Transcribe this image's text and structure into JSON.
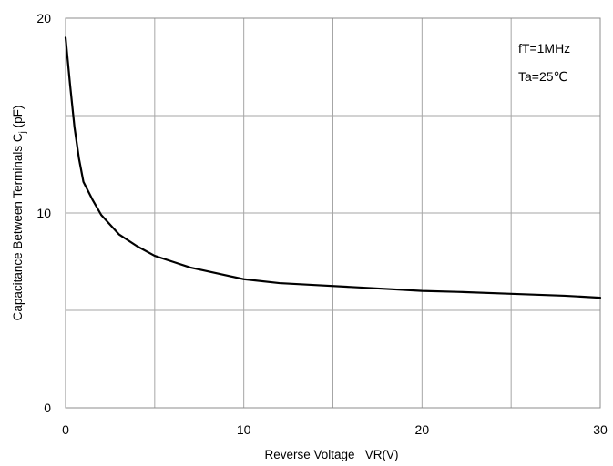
{
  "chart_data": {
    "type": "line",
    "xlabel": "Reverse Voltage   VR(V)",
    "ylabel": {
      "main": "Capacitance Between Terminals C",
      "sub": "j",
      "unit": " (pF)"
    },
    "xlim": [
      0,
      30
    ],
    "ylim": [
      0,
      20
    ],
    "xticks": [
      0,
      10,
      20,
      30
    ],
    "yticks": [
      0,
      10,
      20
    ],
    "x_grid": [
      0,
      5,
      10,
      15,
      20,
      25,
      30
    ],
    "y_grid": [
      0,
      5,
      10,
      15,
      20
    ],
    "grid": true,
    "annotations": [
      "fT=1MHz",
      "Ta=25℃"
    ],
    "series": [
      {
        "x": [
          0,
          0.25,
          0.5,
          0.75,
          1,
          1.5,
          2,
          3,
          4,
          5,
          6,
          7,
          8,
          10,
          12,
          14,
          16,
          18,
          20,
          22,
          25,
          28,
          30
        ],
        "y": [
          19.0,
          16.6,
          14.4,
          12.8,
          11.6,
          10.7,
          9.9,
          8.9,
          8.3,
          7.8,
          7.5,
          7.2,
          7.0,
          6.6,
          6.4,
          6.3,
          6.2,
          6.1,
          6.0,
          5.95,
          5.85,
          5.75,
          5.65
        ]
      }
    ],
    "colors": {
      "line": "#000000",
      "grid": "#a6a6a6",
      "frame": "#8c8c8c"
    }
  }
}
